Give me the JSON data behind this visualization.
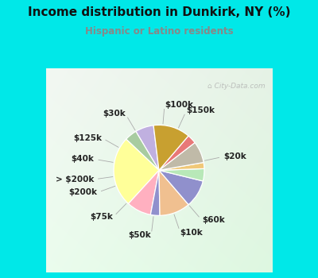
{
  "title": "Income distribution in Dunkirk, NY (%)",
  "subtitle": "Hispanic or Latino residents",
  "title_color": "#111111",
  "subtitle_color": "#888888",
  "outer_bg_color": "#00e8e8",
  "chart_bg_color": "#e8f8f0",
  "watermark": "City-Data.com",
  "labels": [
    "$100k",
    "$150k",
    "$20k",
    "$60k",
    "$10k",
    "$50k",
    "$75k",
    "$200k",
    "> $200k",
    "$40k",
    "$125k",
    "$30k"
  ],
  "values": [
    6,
    4,
    23,
    8,
    3,
    10,
    9,
    4,
    2,
    7,
    3,
    12
  ],
  "colors": [
    "#c0b0e0",
    "#a8cca0",
    "#ffff99",
    "#ffb0c0",
    "#9090cc",
    "#f0c090",
    "#9090cc",
    "#b8e8b8",
    "#f0c878",
    "#c0baa8",
    "#e87878",
    "#c8a030"
  ],
  "startangle": 97,
  "label_fontsize": 7.5,
  "label_color": "#222222"
}
